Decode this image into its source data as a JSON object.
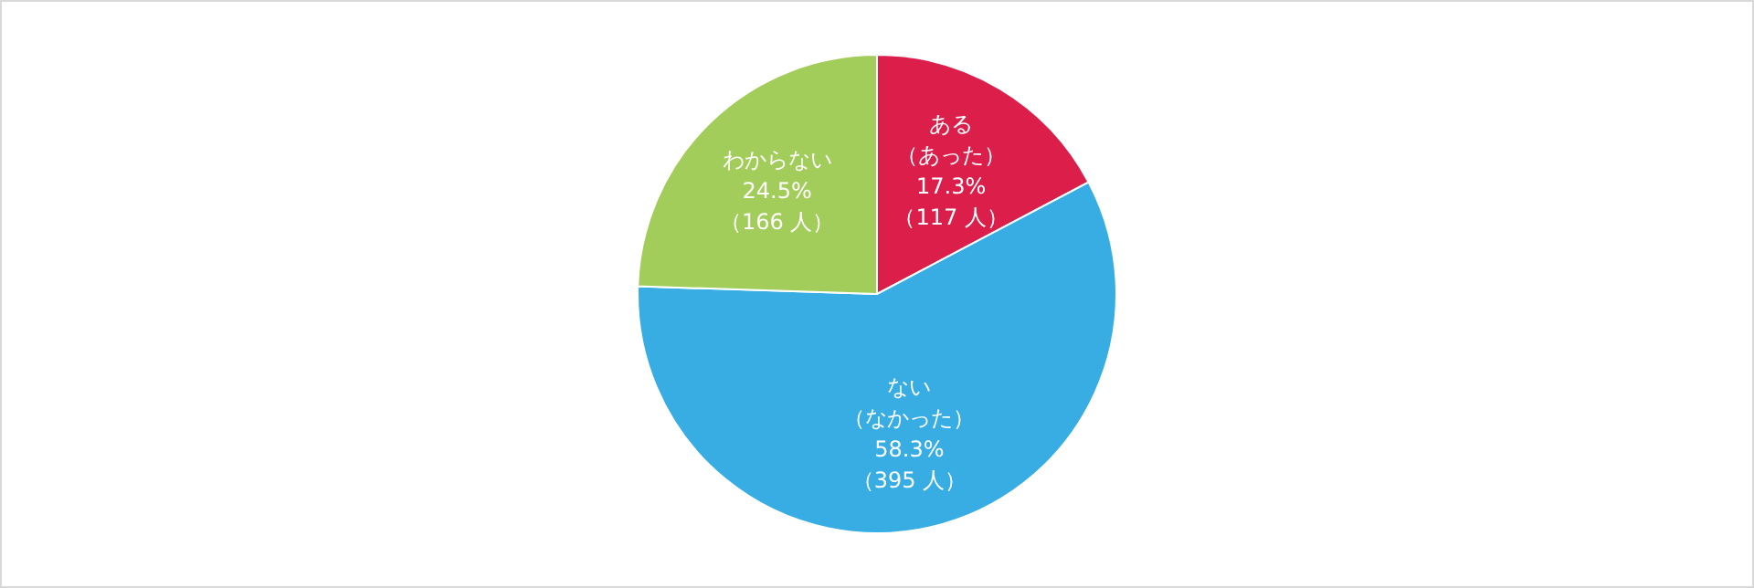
{
  "chart_data": {
    "type": "pie",
    "categories": [
      "ある（あった）",
      "ない（なかった）",
      "わからない"
    ],
    "values": [
      117,
      395,
      166
    ],
    "colors": [
      "#dc1e4b",
      "#38ade4",
      "#a2cd5a"
    ],
    "value_labels": [
      "17.3%（117 人）",
      "58.3%（395 人）",
      "24.5%（166 人）"
    ]
  }
}
